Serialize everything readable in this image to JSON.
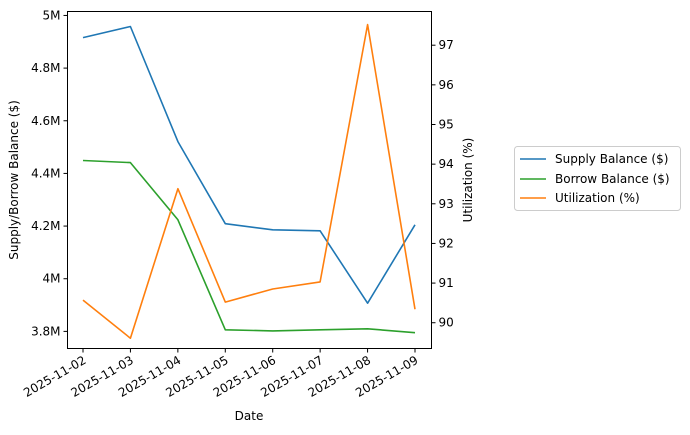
{
  "chart_data": {
    "type": "line",
    "title": "",
    "xlabel": "Date",
    "ylabel": "Supply/Borrow Balance ($)",
    "y2label": "Utilization (%)",
    "x": [
      "2025-11-02",
      "2025-11-03",
      "2025-11-04",
      "2025-11-05",
      "2025-11-06",
      "2025-11-07",
      "2025-11-08",
      "2025-11-09"
    ],
    "series": [
      {
        "name": "Supply Balance ($)",
        "axis": "left",
        "color": "#1f77b4",
        "values": [
          4916000,
          4958000,
          4521000,
          4209000,
          4186000,
          4182000,
          3907000,
          4205000
        ]
      },
      {
        "name": "Borrow Balance ($)",
        "axis": "left",
        "color": "#2ca02c",
        "values": [
          4449000,
          4441000,
          4224000,
          3806000,
          3802000,
          3806000,
          3810000,
          3795000
        ]
      },
      {
        "name": "Utilization (%)",
        "axis": "right",
        "color": "#ff7f0e",
        "values": [
          90.57,
          89.61,
          93.38,
          90.52,
          90.85,
          91.03,
          97.52,
          90.34
        ]
      }
    ],
    "yticks": [
      3800000,
      4000000,
      4200000,
      4400000,
      4600000,
      4800000,
      5000000
    ],
    "ytick_labels": [
      "3.8M",
      "4M",
      "4.2M",
      "4.4M",
      "4.6M",
      "4.8M",
      "5M"
    ],
    "y2ticks": [
      90,
      91,
      92,
      93,
      94,
      95,
      96,
      97
    ],
    "y2tick_labels": [
      "90",
      "91",
      "92",
      "93",
      "94",
      "95",
      "96",
      "97"
    ],
    "ylim": [
      3735000,
      5015000
    ],
    "y2lim": [
      89.35,
      97.85
    ],
    "grid": false,
    "legend_position": "right outside"
  }
}
